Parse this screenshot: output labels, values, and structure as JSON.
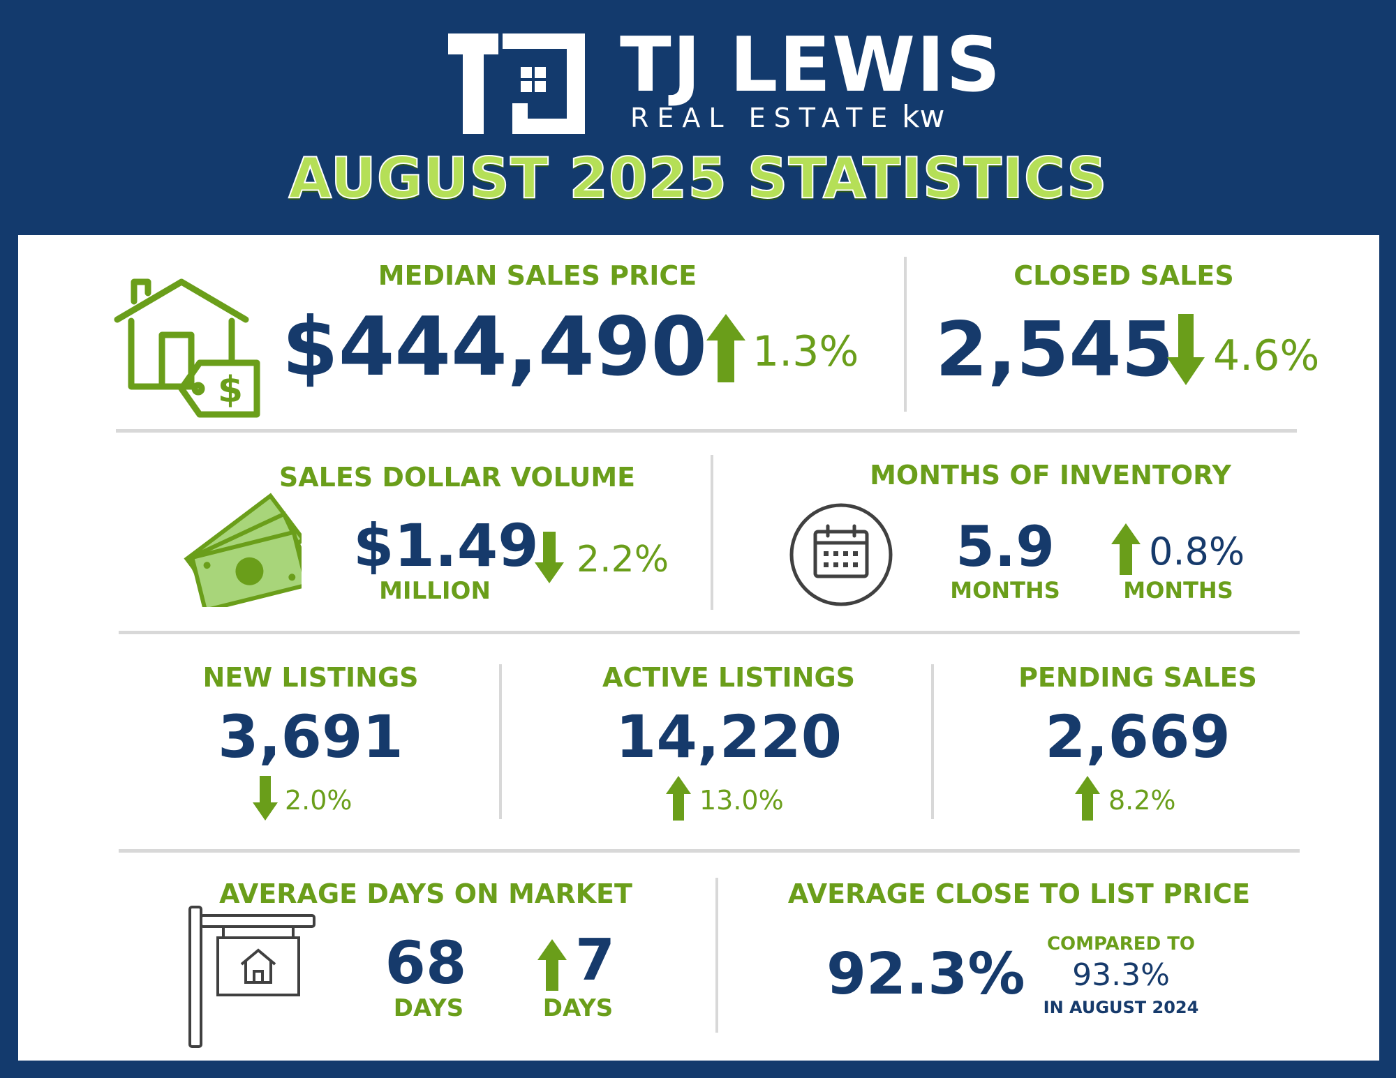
{
  "brand": {
    "name": "TJ LEWIS",
    "sub": "REAL ESTATE",
    "kw": "kw"
  },
  "title": "AUGUST 2025 STATISTICS",
  "colors": {
    "navy": "#163a6b",
    "green": "#6a9e1a",
    "background": "#133a6d"
  },
  "median_sales_price": {
    "label": "MEDIAN SALES PRICE",
    "value": "$444,490",
    "change": "1.3%",
    "direction": "up",
    "icon": "house-price-tag-icon"
  },
  "closed_sales": {
    "label": "CLOSED SALES",
    "value": "2,545",
    "change": "4.6%",
    "direction": "down"
  },
  "sales_dollar_volume": {
    "label": "SALES DOLLAR VOLUME",
    "value": "$1.49",
    "unit": "MILLION",
    "change": "2.2%",
    "direction": "down",
    "icon": "money-bills-icon"
  },
  "months_of_inventory": {
    "label": "MONTHS OF INVENTORY",
    "value": "5.9",
    "unit": "MONTHS",
    "change": "0.8%",
    "change_unit": "MONTHS",
    "direction": "up",
    "icon": "calendar-icon"
  },
  "new_listings": {
    "label": "NEW LISTINGS",
    "value": "3,691",
    "change": "2.0%",
    "direction": "down"
  },
  "active_listings": {
    "label": "ACTIVE LISTINGS",
    "value": "14,220",
    "change": "13.0%",
    "direction": "up"
  },
  "pending_sales": {
    "label": "PENDING SALES",
    "value": "2,669",
    "change": "8.2%",
    "direction": "up"
  },
  "avg_days_on_market": {
    "label": "AVERAGE DAYS ON MARKET",
    "value": "68",
    "unit": "DAYS",
    "change": "7",
    "change_unit": "DAYS",
    "direction": "up",
    "icon": "for-sale-sign-icon"
  },
  "avg_close_to_list": {
    "label": "AVERAGE CLOSE TO LIST PRICE",
    "value": "92.3%",
    "compared_line1": "COMPARED TO",
    "compared_value": "93.3%",
    "compared_line3": "IN AUGUST 2024"
  }
}
